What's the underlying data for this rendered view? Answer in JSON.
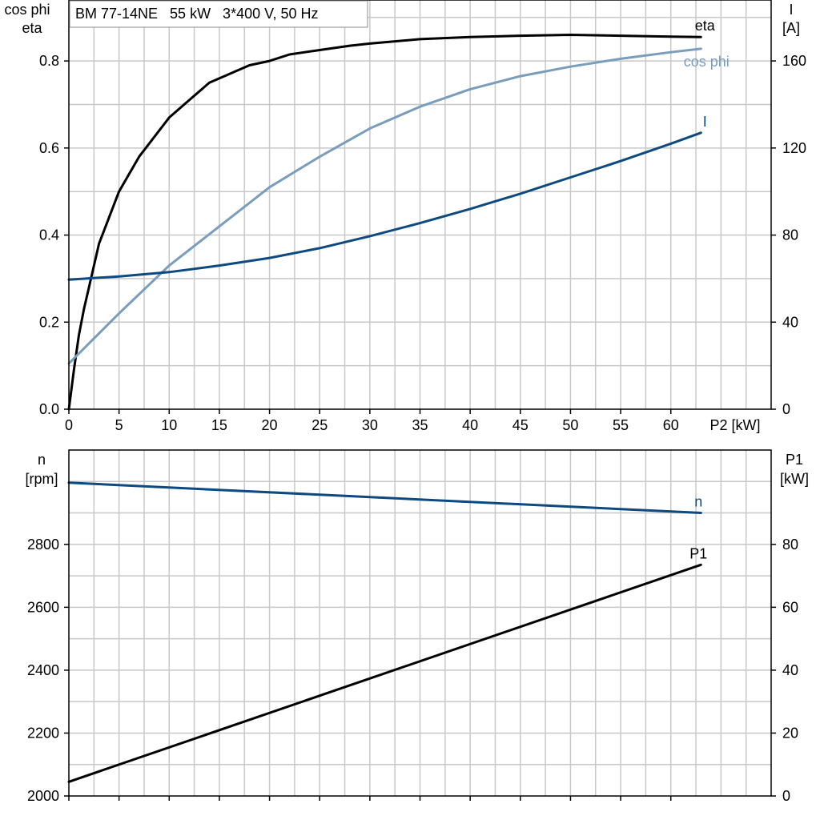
{
  "info_box": "BM 77-14NE   55 kW   3*400 V, 50 Hz",
  "colors": {
    "eta": "#000000",
    "cos_phi": "#7a9dbc",
    "current": "#0d4a80",
    "speed": "#0d4a80",
    "p1": "#000000",
    "grid": "#c8c8c8"
  },
  "chart_data": [
    {
      "type": "line",
      "x_label": "P2 [kW]",
      "x_ticks": [
        "0",
        "5",
        "10",
        "15",
        "20",
        "25",
        "30",
        "35",
        "40",
        "45",
        "50",
        "55",
        "60"
      ],
      "xlim": [
        0,
        70
      ],
      "y_left_label": [
        "cos phi",
        "eta"
      ],
      "y_left_ticks": [
        "0.0",
        "0.2",
        "0.4",
        "0.6",
        "0.8"
      ],
      "y_left_lim": [
        0,
        0.94
      ],
      "y_right_label": [
        "I",
        "[A]"
      ],
      "y_right_ticks": [
        "0",
        "40",
        "80",
        "120",
        "160"
      ],
      "y_right_lim": [
        0,
        188
      ],
      "grid": true,
      "series": [
        {
          "name": "eta",
          "axis": "left",
          "x": [
            0,
            0.5,
            1,
            1.5,
            2,
            3,
            4,
            5,
            6,
            7,
            8,
            9,
            10,
            12,
            14,
            16,
            18,
            20,
            22,
            25,
            28,
            30,
            35,
            40,
            45,
            50,
            55,
            60,
            63
          ],
          "y": [
            0,
            0.09,
            0.17,
            0.23,
            0.28,
            0.38,
            0.44,
            0.5,
            0.54,
            0.58,
            0.61,
            0.64,
            0.67,
            0.71,
            0.75,
            0.77,
            0.79,
            0.8,
            0.815,
            0.825,
            0.835,
            0.84,
            0.85,
            0.855,
            0.858,
            0.86,
            0.858,
            0.856,
            0.855
          ]
        },
        {
          "name": "cos phi",
          "axis": "left",
          "x": [
            0,
            5,
            10,
            15,
            20,
            25,
            30,
            35,
            40,
            45,
            50,
            55,
            60,
            63
          ],
          "y": [
            0.105,
            0.22,
            0.33,
            0.42,
            0.51,
            0.58,
            0.645,
            0.695,
            0.735,
            0.765,
            0.787,
            0.805,
            0.82,
            0.828
          ]
        },
        {
          "name": "I",
          "axis": "right",
          "x": [
            0,
            5,
            10,
            15,
            20,
            25,
            30,
            35,
            40,
            45,
            50,
            55,
            60,
            63
          ],
          "y": [
            59.5,
            61,
            63,
            66,
            69.5,
            74,
            79.5,
            85.5,
            92,
            99,
            106.5,
            114,
            122,
            127
          ]
        }
      ]
    },
    {
      "type": "line",
      "xlim": [
        0,
        70
      ],
      "y_left_label": [
        "n",
        "[rpm]"
      ],
      "y_left_ticks": [
        "2000",
        "2200",
        "2400",
        "2600",
        "2800"
      ],
      "y_left_lim": [
        2000,
        3100
      ],
      "y_right_label": [
        "P1",
        "[kW]"
      ],
      "y_right_ticks": [
        "0",
        "20",
        "40",
        "60",
        "80"
      ],
      "y_right_lim": [
        0,
        110
      ],
      "grid": true,
      "series": [
        {
          "name": "n",
          "axis": "left",
          "x": [
            0,
            63
          ],
          "y": [
            2996,
            2900
          ]
        },
        {
          "name": "P1",
          "axis": "right",
          "x": [
            0,
            63
          ],
          "y": [
            4.5,
            73.5
          ]
        }
      ]
    }
  ]
}
